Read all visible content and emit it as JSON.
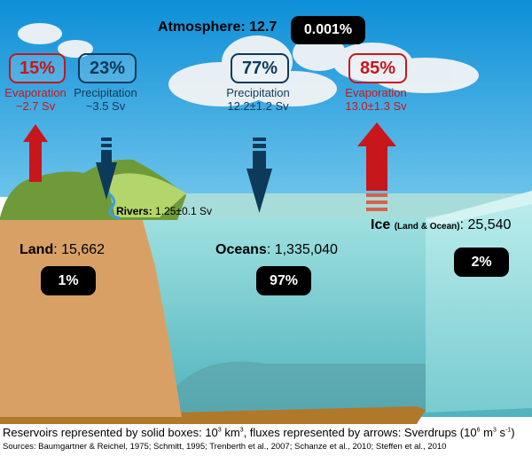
{
  "colors": {
    "evaporation": "#c8161d",
    "precipitation": "#0e3a5a",
    "sky": "#1a9ee0",
    "ocean": "#7fd0d0",
    "land": "#d9a066"
  },
  "atmosphere": {
    "label": "Atmosphere:",
    "value": "12.7",
    "percent": "0.001%"
  },
  "fluxes": [
    {
      "percent": "15%",
      "label": "Evaporation",
      "value": "~2.7 Sv",
      "type": "evaporation"
    },
    {
      "percent": "23%",
      "label": "Precipitation",
      "value": "~3.5 Sv",
      "type": "precipitation"
    },
    {
      "percent": "77%",
      "label": "Precipitation",
      "value": "12.2±1.2 Sv",
      "type": "precipitation"
    },
    {
      "percent": "85%",
      "label": "Evaporation",
      "value": "13.0±1.3 Sv",
      "type": "evaporation"
    }
  ],
  "rivers": {
    "label": "Rivers:",
    "value": "1.25±0.1 Sv"
  },
  "reservoirs": {
    "land": {
      "label": "Land",
      "value": ": 15,662",
      "percent": "1%"
    },
    "oceans": {
      "label": "Oceans",
      "value": ": 1,335,040",
      "percent": "97%"
    },
    "ice": {
      "label": "Ice",
      "sub": "(Land & Ocean)",
      "value": ": 25,540",
      "percent": "2%"
    }
  },
  "footer": {
    "note_a": "Reservoirs represented by solid boxes: 10",
    "note_b": "3",
    "note_c": " km",
    "note_d": "3",
    "note_e": ", fluxes represented by arrows: Sverdrups (10",
    "note_f": "6",
    "note_g": " m",
    "note_h": "3",
    "note_i": " s",
    "note_j": "-1",
    "note_k": ")",
    "sources": "Sources: Baumgartner & Reichel, 1975; Schmitt, 1995; Trenberth et al., 2007; Schanze et al., 2010; Steffen et al., 2010"
  }
}
